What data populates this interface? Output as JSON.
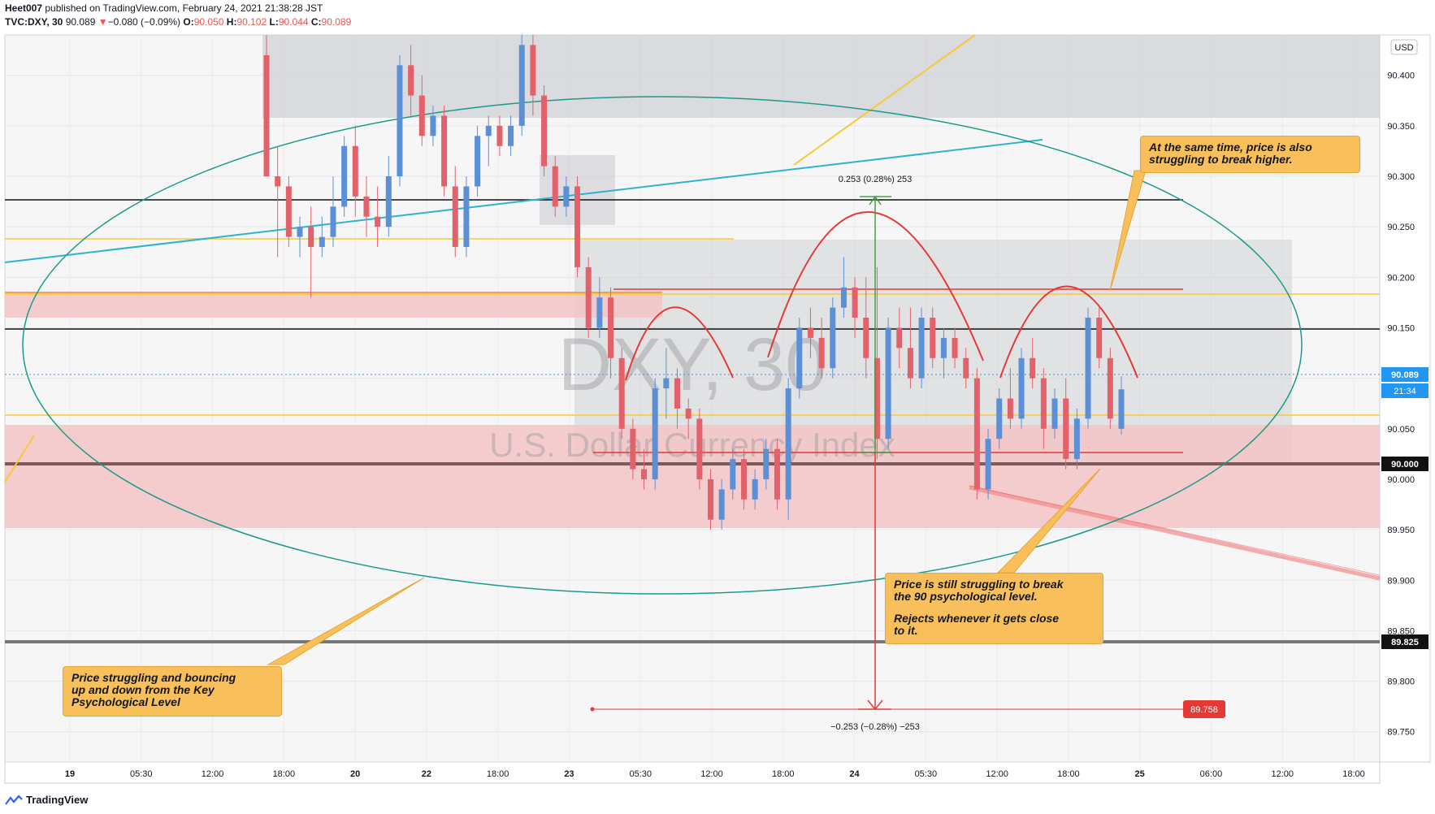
{
  "header": {
    "author": "Heet007",
    "published_text": "published on TradingView.com, February 24, 2021 21:38:28 JST",
    "symbol": "TVC:DXY, 30",
    "last": "90.089",
    "change_arrow": "▼",
    "change": "−0.080 (−0.09%)",
    "o_label": "O:",
    "o": "90.050",
    "h_label": "H:",
    "h": "90.102",
    "l_label": "L:",
    "l": "90.044",
    "c_label": "C:",
    "c": "90.089"
  },
  "footer": {
    "logo_icon": "tradingview-logo-icon",
    "brand": "TradingView"
  },
  "colors": {
    "up": "#5b8fd6",
    "down": "#e2626b",
    "zone_red": "#f5c4c6",
    "zone_gray": "#c8c9cf",
    "ellipse": "#1a9b8a",
    "trend_blue": "#2eb3cf",
    "yellow": "#f7c937",
    "arc_red": "#e53935",
    "measure_green": "#43a047",
    "black_line": "#111111"
  },
  "chart_data": {
    "type": "candlestick",
    "symbol": "DXY, 30",
    "subtitle": "U.S. Dollar Currency Index",
    "price_axis_unit": "USD",
    "ylim": [
      89.72,
      90.44
    ],
    "y_ticks": [
      "90.400",
      "90.350",
      "90.300",
      "90.250",
      "90.200",
      "90.150",
      "90.100",
      "90.050",
      "90.000",
      "89.950",
      "89.900",
      "89.850",
      "89.800",
      "89.750"
    ],
    "x_ticks": [
      "19",
      "05:30",
      "12:00",
      "18:00",
      "20",
      "22",
      "18:00",
      "23",
      "05:30",
      "12:00",
      "18:00",
      "24",
      "05:30",
      "12:00",
      "18:00",
      "25",
      "06:00",
      "12:00",
      "18:00"
    ],
    "current_price_label": "90.089",
    "countdown_label": "21:34",
    "level_labels": [
      "90.000",
      "89.825"
    ],
    "target_label": "89.758",
    "candles": [
      {
        "o": 90.42,
        "h": 90.44,
        "l": 90.3,
        "c": 90.3
      },
      {
        "o": 90.3,
        "h": 90.33,
        "l": 90.22,
        "c": 90.29
      },
      {
        "o": 90.29,
        "h": 90.3,
        "l": 90.23,
        "c": 90.24
      },
      {
        "o": 90.24,
        "h": 90.26,
        "l": 90.22,
        "c": 90.25
      },
      {
        "o": 90.25,
        "h": 90.27,
        "l": 90.18,
        "c": 90.23
      },
      {
        "o": 90.23,
        "h": 90.26,
        "l": 90.22,
        "c": 90.24
      },
      {
        "o": 90.24,
        "h": 90.3,
        "l": 90.23,
        "c": 90.27
      },
      {
        "o": 90.27,
        "h": 90.34,
        "l": 90.26,
        "c": 90.33
      },
      {
        "o": 90.33,
        "h": 90.35,
        "l": 90.26,
        "c": 90.28
      },
      {
        "o": 90.28,
        "h": 90.3,
        "l": 90.24,
        "c": 90.26
      },
      {
        "o": 90.26,
        "h": 90.29,
        "l": 90.23,
        "c": 90.25
      },
      {
        "o": 90.25,
        "h": 90.32,
        "l": 90.24,
        "c": 90.3
      },
      {
        "o": 90.3,
        "h": 90.42,
        "l": 90.29,
        "c": 90.41
      },
      {
        "o": 90.41,
        "h": 90.43,
        "l": 90.36,
        "c": 90.38
      },
      {
        "o": 90.38,
        "h": 90.4,
        "l": 90.33,
        "c": 90.34
      },
      {
        "o": 90.34,
        "h": 90.37,
        "l": 90.33,
        "c": 90.36
      },
      {
        "o": 90.36,
        "h": 90.37,
        "l": 90.28,
        "c": 90.29
      },
      {
        "o": 90.29,
        "h": 90.31,
        "l": 90.22,
        "c": 90.23
      },
      {
        "o": 90.23,
        "h": 90.3,
        "l": 90.22,
        "c": 90.29
      },
      {
        "o": 90.29,
        "h": 90.35,
        "l": 90.28,
        "c": 90.34
      },
      {
        "o": 90.34,
        "h": 90.36,
        "l": 90.31,
        "c": 90.35
      },
      {
        "o": 90.35,
        "h": 90.36,
        "l": 90.32,
        "c": 90.33
      },
      {
        "o": 90.33,
        "h": 90.36,
        "l": 90.32,
        "c": 90.35
      },
      {
        "o": 90.35,
        "h": 90.44,
        "l": 90.34,
        "c": 90.43
      },
      {
        "o": 90.43,
        "h": 90.44,
        "l": 90.36,
        "c": 90.38
      },
      {
        "o": 90.38,
        "h": 90.39,
        "l": 90.3,
        "c": 90.31
      },
      {
        "o": 90.31,
        "h": 90.32,
        "l": 90.26,
        "c": 90.27
      },
      {
        "o": 90.27,
        "h": 90.3,
        "l": 90.26,
        "c": 90.29
      },
      {
        "o": 90.29,
        "h": 90.3,
        "l": 90.2,
        "c": 90.21
      },
      {
        "o": 90.21,
        "h": 90.22,
        "l": 90.14,
        "c": 90.15
      },
      {
        "o": 90.15,
        "h": 90.2,
        "l": 90.14,
        "c": 90.18
      },
      {
        "o": 90.18,
        "h": 90.19,
        "l": 90.1,
        "c": 90.12
      },
      {
        "o": 90.12,
        "h": 90.13,
        "l": 90.04,
        "c": 90.05
      },
      {
        "o": 90.05,
        "h": 90.06,
        "l": 90.0,
        "c": 90.01
      },
      {
        "o": 90.01,
        "h": 90.03,
        "l": 89.99,
        "c": 90.0
      },
      {
        "o": 90.0,
        "h": 90.1,
        "l": 89.99,
        "c": 90.09
      },
      {
        "o": 90.09,
        "h": 90.13,
        "l": 90.06,
        "c": 90.1
      },
      {
        "o": 90.1,
        "h": 90.11,
        "l": 90.05,
        "c": 90.07
      },
      {
        "o": 90.07,
        "h": 90.08,
        "l": 90.04,
        "c": 90.06
      },
      {
        "o": 90.06,
        "h": 90.07,
        "l": 89.99,
        "c": 90.0
      },
      {
        "o": 90.0,
        "h": 90.01,
        "l": 89.95,
        "c": 89.96
      },
      {
        "o": 89.96,
        "h": 90.0,
        "l": 89.95,
        "c": 89.99
      },
      {
        "o": 89.99,
        "h": 90.03,
        "l": 89.98,
        "c": 90.02
      },
      {
        "o": 90.02,
        "h": 90.03,
        "l": 89.97,
        "c": 89.98
      },
      {
        "o": 89.98,
        "h": 90.01,
        "l": 89.97,
        "c": 90.0
      },
      {
        "o": 90.0,
        "h": 90.04,
        "l": 89.99,
        "c": 90.03
      },
      {
        "o": 90.03,
        "h": 90.04,
        "l": 89.97,
        "c": 89.98
      },
      {
        "o": 89.98,
        "h": 90.1,
        "l": 89.96,
        "c": 90.09
      },
      {
        "o": 90.09,
        "h": 90.16,
        "l": 90.08,
        "c": 90.15
      },
      {
        "o": 90.15,
        "h": 90.17,
        "l": 90.12,
        "c": 90.14
      },
      {
        "o": 90.14,
        "h": 90.16,
        "l": 90.1,
        "c": 90.11
      },
      {
        "o": 90.11,
        "h": 90.18,
        "l": 90.1,
        "c": 90.17
      },
      {
        "o": 90.17,
        "h": 90.22,
        "l": 90.16,
        "c": 90.19
      },
      {
        "o": 90.19,
        "h": 90.2,
        "l": 90.14,
        "c": 90.16
      },
      {
        "o": 90.16,
        "h": 90.2,
        "l": 90.1,
        "c": 90.12
      },
      {
        "o": 90.12,
        "h": 90.21,
        "l": 90.02,
        "c": 90.04
      },
      {
        "o": 90.04,
        "h": 90.16,
        "l": 90.03,
        "c": 90.15
      },
      {
        "o": 90.15,
        "h": 90.17,
        "l": 90.11,
        "c": 90.13
      },
      {
        "o": 90.13,
        "h": 90.17,
        "l": 90.09,
        "c": 90.1
      },
      {
        "o": 90.1,
        "h": 90.17,
        "l": 90.09,
        "c": 90.16
      },
      {
        "o": 90.16,
        "h": 90.17,
        "l": 90.11,
        "c": 90.12
      },
      {
        "o": 90.12,
        "h": 90.15,
        "l": 90.1,
        "c": 90.14
      },
      {
        "o": 90.14,
        "h": 90.15,
        "l": 90.11,
        "c": 90.12
      },
      {
        "o": 90.12,
        "h": 90.13,
        "l": 90.09,
        "c": 90.1
      },
      {
        "o": 90.1,
        "h": 90.11,
        "l": 89.98,
        "c": 89.99
      },
      {
        "o": 89.99,
        "h": 90.05,
        "l": 89.98,
        "c": 90.04
      },
      {
        "o": 90.04,
        "h": 90.09,
        "l": 90.03,
        "c": 90.08
      },
      {
        "o": 90.08,
        "h": 90.11,
        "l": 90.05,
        "c": 90.06
      },
      {
        "o": 90.06,
        "h": 90.13,
        "l": 90.05,
        "c": 90.12
      },
      {
        "o": 90.12,
        "h": 90.14,
        "l": 90.09,
        "c": 90.1
      },
      {
        "o": 90.1,
        "h": 90.11,
        "l": 90.03,
        "c": 90.05
      },
      {
        "o": 90.05,
        "h": 90.09,
        "l": 90.04,
        "c": 90.08
      },
      {
        "o": 90.08,
        "h": 90.1,
        "l": 90.01,
        "c": 90.02
      },
      {
        "o": 90.02,
        "h": 90.07,
        "l": 90.01,
        "c": 90.06
      },
      {
        "o": 90.06,
        "h": 90.17,
        "l": 90.05,
        "c": 90.16
      },
      {
        "o": 90.16,
        "h": 90.17,
        "l": 90.11,
        "c": 90.12
      },
      {
        "o": 90.12,
        "h": 90.13,
        "l": 90.05,
        "c": 90.06
      },
      {
        "o": 90.05,
        "h": 90.102,
        "l": 90.044,
        "c": 90.089
      }
    ]
  },
  "annotations": {
    "watermark_title": "DXY, 30",
    "watermark_subtitle": "U.S. Dollar Currency Index",
    "measure_up": "0.253 (0.28%) 253",
    "measure_down": "−0.253 (−0.28%) −253",
    "note_top_right": [
      "At the same time, price is also",
      "struggling to break higher."
    ],
    "note_middle": [
      "Price is still struggling to break",
      "the 90 psychological level.",
      "",
      "Rejects whenever it gets close",
      "to it."
    ],
    "note_left": [
      "Price struggling and bouncing",
      "up and down from the Key",
      "Psychological Level"
    ]
  }
}
